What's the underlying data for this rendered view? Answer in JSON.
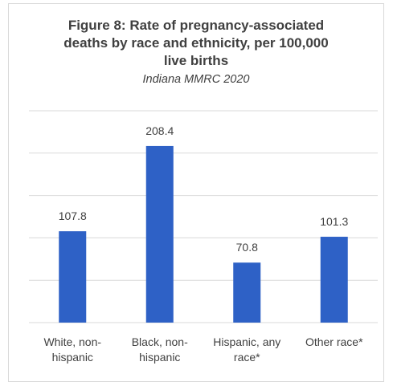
{
  "chart_data": {
    "type": "bar",
    "title_lines": [
      "Figure 8: Rate of pregnancy-associated",
      "deaths by race and ethnicity, per 100,000",
      "live births"
    ],
    "subtitle": "Indiana MMRC 2020",
    "categories": [
      [
        "White, non-",
        "hispanic"
      ],
      [
        "Black, non-",
        "hispanic"
      ],
      [
        "Hispanic, any",
        "race*"
      ],
      [
        "Other race*"
      ]
    ],
    "values": [
      107.8,
      208.4,
      70.8,
      101.3
    ],
    "data_labels": [
      "107.8",
      "208.4",
      "70.8",
      "101.3"
    ],
    "xlabel": "",
    "ylabel": "",
    "ylim": [
      0,
      250
    ],
    "grid": true,
    "legend": "none",
    "bar_color": "#2e61c6",
    "grid_color": "#d9d9d9",
    "text_color": "#404040"
  }
}
